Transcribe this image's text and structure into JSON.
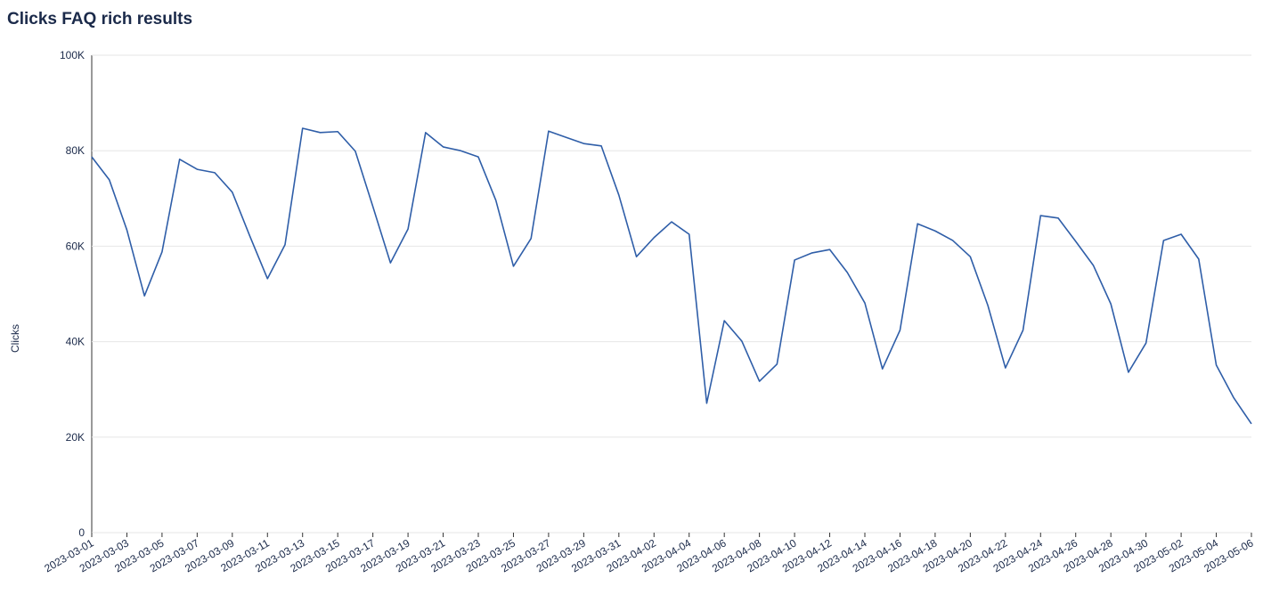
{
  "chart_data": {
    "type": "line",
    "title": "Clicks FAQ rich results",
    "y_label": "Clicks",
    "x": [
      "2023-03-01",
      "2023-03-02",
      "2023-03-03",
      "2023-03-04",
      "2023-03-05",
      "2023-03-06",
      "2023-03-07",
      "2023-03-08",
      "2023-03-09",
      "2023-03-10",
      "2023-03-11",
      "2023-03-12",
      "2023-03-13",
      "2023-03-14",
      "2023-03-15",
      "2023-03-16",
      "2023-03-17",
      "2023-03-18",
      "2023-03-19",
      "2023-03-20",
      "2023-03-21",
      "2023-03-22",
      "2023-03-23",
      "2023-03-24",
      "2023-03-25",
      "2023-03-26",
      "2023-03-27",
      "2023-03-28",
      "2023-03-29",
      "2023-03-30",
      "2023-03-31",
      "2023-04-01",
      "2023-04-02",
      "2023-04-03",
      "2023-04-04",
      "2023-04-05",
      "2023-04-06",
      "2023-04-07",
      "2023-04-08",
      "2023-04-09",
      "2023-04-10",
      "2023-04-11",
      "2023-04-12",
      "2023-04-13",
      "2023-04-14",
      "2023-04-15",
      "2023-04-16",
      "2023-04-17",
      "2023-04-18",
      "2023-04-19",
      "2023-04-20",
      "2023-04-21",
      "2023-04-22",
      "2023-04-23",
      "2023-04-24",
      "2023-04-25",
      "2023-04-26",
      "2023-04-27",
      "2023-04-28",
      "2023-04-29",
      "2023-04-30",
      "2023-05-01",
      "2023-05-02",
      "2023-05-03",
      "2023-05-04",
      "2023-05-05",
      "2023-05-06"
    ],
    "series": [
      {
        "name": "Clicks",
        "color": "#2f5ea8",
        "values": [
          78700,
          73900,
          63400,
          49600,
          58800,
          78200,
          76100,
          75400,
          71300,
          62100,
          53200,
          60300,
          84700,
          83800,
          84000,
          79900,
          68300,
          56500,
          63600,
          83800,
          80800,
          80000,
          78700,
          69600,
          55800,
          61600,
          84100,
          82800,
          81500,
          81000,
          70700,
          57800,
          61800,
          65100,
          62500,
          27100,
          44400,
          40100,
          31700,
          35300,
          57100,
          58600,
          59300,
          54500,
          48100,
          34300,
          42400,
          64700,
          63200,
          61200,
          57800,
          47600,
          34500,
          42400,
          66400,
          65900,
          61000,
          56000,
          47900,
          33600,
          39700,
          61200,
          62500,
          57300,
          35100,
          28200,
          22800
        ]
      }
    ],
    "ylim": [
      0,
      100000
    ],
    "yticks": [
      0,
      {
        "value": 20000,
        "label": "20K"
      },
      {
        "value": 40000,
        "label": "40K"
      },
      {
        "value": 60000,
        "label": "60K"
      },
      {
        "value": 80000,
        "label": "80K"
      },
      {
        "value": 100000,
        "label": "100K"
      }
    ],
    "grid": true
  }
}
